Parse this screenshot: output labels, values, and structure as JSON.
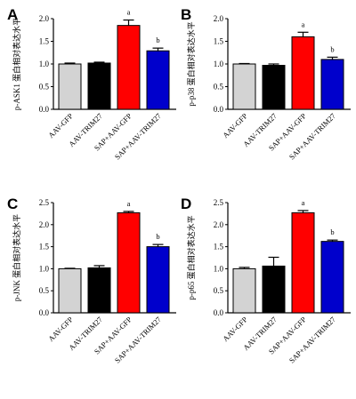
{
  "chart_data": [
    {
      "type": "bar",
      "panel_label": "A",
      "ylabel": "p-ASK1 蛋白相对表达水平",
      "categories": [
        "AAV-GFP",
        "AAV-TRIM27",
        "SAP+AAV-GFP",
        "SAP+AAV-TRIM27"
      ],
      "values": [
        1.0,
        1.02,
        1.85,
        1.29
      ],
      "errors": [
        0.02,
        0.02,
        0.12,
        0.06
      ],
      "significance": [
        "",
        "",
        "a",
        "b"
      ],
      "colors": [
        "#d3d3d3",
        "#000000",
        "#ff0000",
        "#0000cc"
      ],
      "ylim": [
        0,
        2.0
      ],
      "yticks": [
        "0.0",
        "0.5",
        "1.0",
        "1.5",
        "2.0"
      ]
    },
    {
      "type": "bar",
      "panel_label": "B",
      "ylabel": "p-p38 蛋白相对表达水平",
      "categories": [
        "AAV-GFP",
        "AAV-TRIM27",
        "SAP+AAV-GFP",
        "SAP+AAV-TRIM27"
      ],
      "values": [
        1.0,
        0.97,
        1.6,
        1.1
      ],
      "errors": [
        0.01,
        0.03,
        0.1,
        0.05
      ],
      "significance": [
        "",
        "",
        "a",
        "b"
      ],
      "colors": [
        "#d3d3d3",
        "#000000",
        "#ff0000",
        "#0000cc"
      ],
      "ylim": [
        0,
        2.0
      ],
      "yticks": [
        "0.0",
        "0.5",
        "1.0",
        "1.5",
        "2.0"
      ]
    },
    {
      "type": "bar",
      "panel_label": "C",
      "ylabel": "p-JNK 蛋白相对表达水平",
      "categories": [
        "AAV-GFP",
        "AAV-TRIM27",
        "SAP+AAV-GFP",
        "SAP+AAV-TRIM27"
      ],
      "values": [
        1.0,
        1.02,
        2.27,
        1.5
      ],
      "errors": [
        0.01,
        0.05,
        0.03,
        0.05
      ],
      "significance": [
        "",
        "",
        "a",
        "b"
      ],
      "colors": [
        "#d3d3d3",
        "#000000",
        "#ff0000",
        "#0000cc"
      ],
      "ylim": [
        0,
        2.5
      ],
      "yticks": [
        "0.0",
        "0.5",
        "1.0",
        "1.5",
        "2.0",
        "2.5"
      ]
    },
    {
      "type": "bar",
      "panel_label": "D",
      "ylabel": "p-p65 蛋白相对表达水平",
      "categories": [
        "AAV-GFP",
        "AAV-TRIM27",
        "SAP+AAV-GFP",
        "SAP+AAV-TRIM27"
      ],
      "values": [
        1.0,
        1.06,
        2.27,
        1.62
      ],
      "errors": [
        0.03,
        0.2,
        0.05,
        0.03
      ],
      "significance": [
        "",
        "",
        "a",
        "b"
      ],
      "colors": [
        "#d3d3d3",
        "#000000",
        "#ff0000",
        "#0000cc"
      ],
      "ylim": [
        0,
        2.5
      ],
      "yticks": [
        "0.0",
        "0.5",
        "1.0",
        "1.5",
        "2.0",
        "2.5"
      ]
    }
  ]
}
